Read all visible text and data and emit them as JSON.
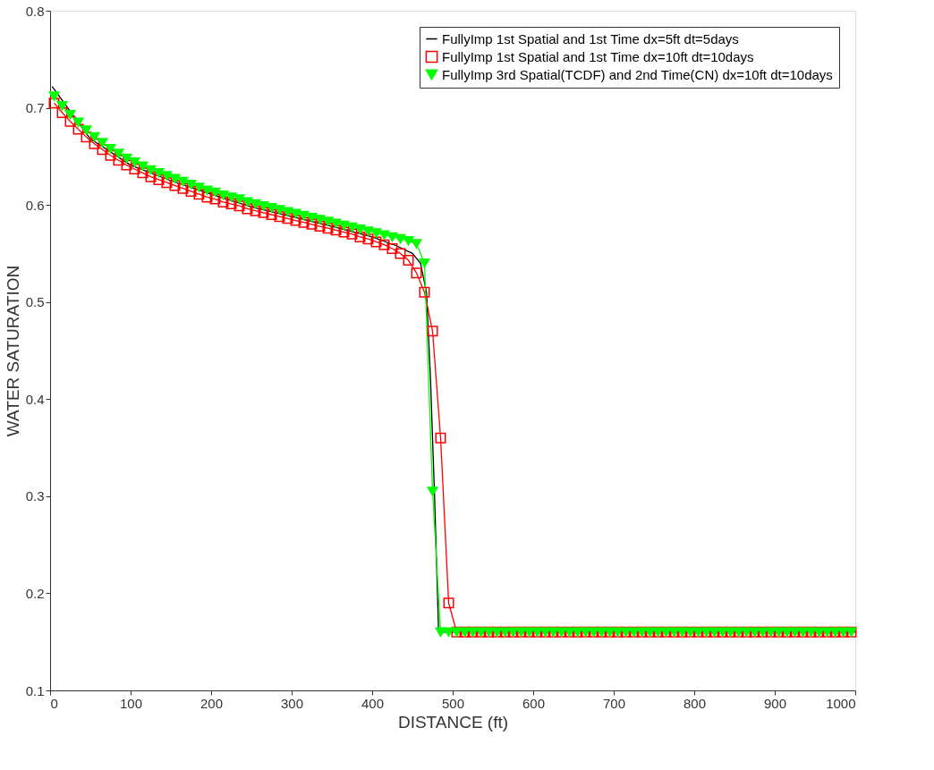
{
  "chart_data": {
    "type": "line",
    "xlabel": "DISTANCE (ft)",
    "ylabel": "WATER SATURATION",
    "xlim": [
      0,
      1000
    ],
    "xticks": [
      0,
      100,
      200,
      300,
      400,
      500,
      600,
      700,
      800,
      900,
      1000
    ],
    "ylim": [
      0.1,
      0.8
    ],
    "yticks": [
      0.1,
      0.2,
      0.3,
      0.4,
      0.5,
      0.6,
      0.7,
      0.8
    ],
    "grid": false,
    "legend": "top right",
    "line_style": "solid",
    "series": [
      {
        "name": "FullyImp 1st Spatial and 1st Time dx=5ft dt=5days",
        "color": "#000000",
        "marker": "none",
        "x": [
          2.5,
          50,
          100,
          150,
          200,
          250,
          300,
          350,
          400,
          430,
          450,
          460,
          467.5,
          472.5,
          477.5,
          482.5,
          1000
        ],
        "values": [
          0.722,
          0.668,
          0.641,
          0.625,
          0.611,
          0.598,
          0.588,
          0.578,
          0.567,
          0.558,
          0.55,
          0.54,
          0.51,
          0.42,
          0.3,
          0.16,
          0.16
        ]
      },
      {
        "name": "FullyImp 1st Spatial and 1st Time dx=10ft dt=10days",
        "color": "#ff0000",
        "marker": "square",
        "x": [
          5,
          15,
          25,
          35,
          45,
          55,
          65,
          75,
          85,
          95,
          105,
          115,
          125,
          135,
          145,
          155,
          165,
          175,
          185,
          195,
          205,
          215,
          225,
          235,
          245,
          255,
          265,
          275,
          285,
          295,
          305,
          315,
          325,
          335,
          345,
          355,
          365,
          375,
          385,
          395,
          405,
          415,
          425,
          435,
          445,
          455,
          465,
          475,
          485,
          495,
          505,
          515,
          525,
          535,
          545,
          555,
          565,
          575,
          585,
          595,
          605,
          615,
          625,
          635,
          645,
          655,
          665,
          675,
          685,
          695,
          705,
          715,
          725,
          735,
          745,
          755,
          765,
          775,
          785,
          795,
          805,
          815,
          825,
          835,
          845,
          855,
          865,
          875,
          885,
          895,
          905,
          915,
          925,
          935,
          945,
          955,
          965,
          975,
          985,
          995
        ],
        "values": [
          0.705,
          0.695,
          0.686,
          0.678,
          0.67,
          0.663,
          0.657,
          0.651,
          0.646,
          0.641,
          0.637,
          0.633,
          0.629,
          0.626,
          0.623,
          0.62,
          0.617,
          0.614,
          0.611,
          0.608,
          0.606,
          0.603,
          0.601,
          0.599,
          0.596,
          0.594,
          0.592,
          0.59,
          0.588,
          0.586,
          0.584,
          0.582,
          0.58,
          0.578,
          0.576,
          0.574,
          0.572,
          0.57,
          0.567,
          0.565,
          0.562,
          0.559,
          0.555,
          0.55,
          0.543,
          0.53,
          0.51,
          0.47,
          0.36,
          0.19,
          0.16,
          0.16,
          0.16,
          0.16,
          0.16,
          0.16,
          0.16,
          0.16,
          0.16,
          0.16,
          0.16,
          0.16,
          0.16,
          0.16,
          0.16,
          0.16,
          0.16,
          0.16,
          0.16,
          0.16,
          0.16,
          0.16,
          0.16,
          0.16,
          0.16,
          0.16,
          0.16,
          0.16,
          0.16,
          0.16,
          0.16,
          0.16,
          0.16,
          0.16,
          0.16,
          0.16,
          0.16,
          0.16,
          0.16,
          0.16,
          0.16,
          0.16,
          0.16,
          0.16,
          0.16,
          0.16,
          0.16,
          0.16,
          0.16,
          0.16
        ]
      },
      {
        "name": "FullyImp 3rd Spatial(TCDF) and 2nd Time(CN) dx=10ft dt=10days",
        "color": "#00ff00",
        "marker": "triangle",
        "x": [
          5,
          15,
          25,
          35,
          45,
          55,
          65,
          75,
          85,
          95,
          105,
          115,
          125,
          135,
          145,
          155,
          165,
          175,
          185,
          195,
          205,
          215,
          225,
          235,
          245,
          255,
          265,
          275,
          285,
          295,
          305,
          315,
          325,
          335,
          345,
          355,
          365,
          375,
          385,
          395,
          405,
          415,
          425,
          435,
          445,
          455,
          465,
          475,
          485,
          495,
          505,
          515,
          525,
          535,
          545,
          555,
          565,
          575,
          585,
          595,
          605,
          615,
          625,
          635,
          645,
          655,
          665,
          675,
          685,
          695,
          705,
          715,
          725,
          735,
          745,
          755,
          765,
          775,
          785,
          795,
          805,
          815,
          825,
          835,
          845,
          855,
          865,
          875,
          885,
          895,
          905,
          915,
          925,
          935,
          945,
          955,
          965,
          975,
          985,
          995
        ],
        "values": [
          0.712,
          0.702,
          0.693,
          0.685,
          0.677,
          0.67,
          0.664,
          0.658,
          0.653,
          0.648,
          0.644,
          0.64,
          0.636,
          0.633,
          0.63,
          0.627,
          0.624,
          0.621,
          0.618,
          0.615,
          0.613,
          0.61,
          0.608,
          0.606,
          0.603,
          0.601,
          0.599,
          0.597,
          0.595,
          0.593,
          0.591,
          0.589,
          0.587,
          0.585,
          0.583,
          0.581,
          0.579,
          0.577,
          0.575,
          0.573,
          0.571,
          0.569,
          0.567,
          0.565,
          0.563,
          0.56,
          0.54,
          0.305,
          0.16,
          0.16,
          0.16,
          0.16,
          0.16,
          0.16,
          0.16,
          0.16,
          0.16,
          0.16,
          0.16,
          0.16,
          0.16,
          0.16,
          0.16,
          0.16,
          0.16,
          0.16,
          0.16,
          0.16,
          0.16,
          0.16,
          0.16,
          0.16,
          0.16,
          0.16,
          0.16,
          0.16,
          0.16,
          0.16,
          0.16,
          0.16,
          0.16,
          0.16,
          0.16,
          0.16,
          0.16,
          0.16,
          0.16,
          0.16,
          0.16,
          0.16,
          0.16,
          0.16,
          0.16,
          0.16,
          0.16,
          0.16,
          0.16,
          0.16,
          0.16,
          0.16
        ]
      }
    ]
  }
}
